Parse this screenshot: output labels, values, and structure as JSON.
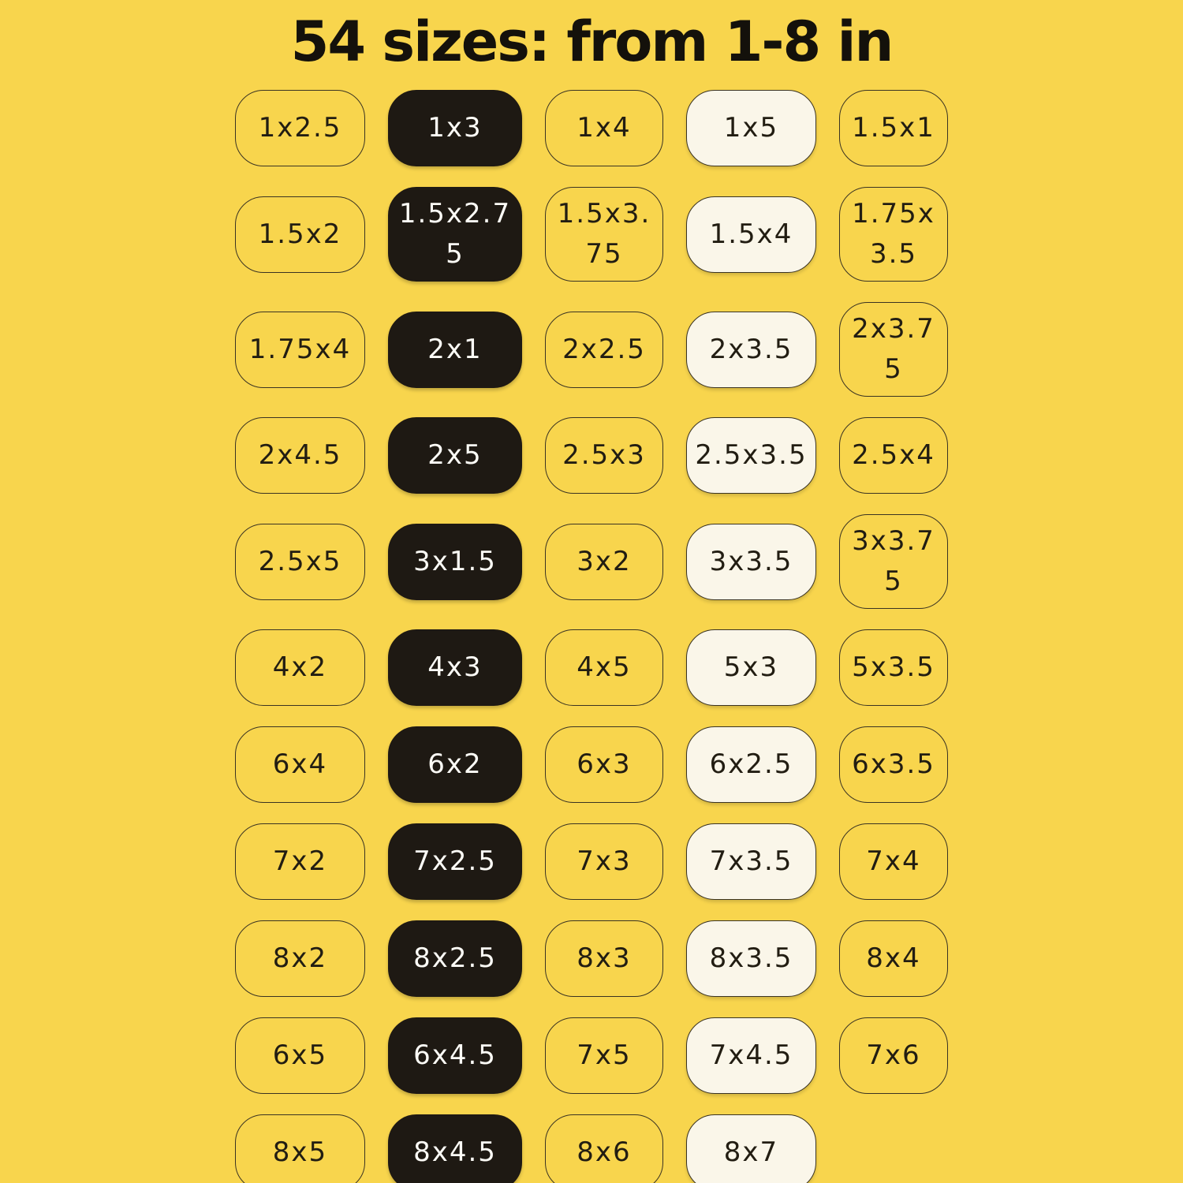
{
  "title": "54 sizes: from 1-8 in",
  "colors": {
    "background": "#F8D54D",
    "pill_black": "#1E1913",
    "pill_cream": "#FAF6E9",
    "border": "#3A3322",
    "text_dark": "#221D12",
    "text_light": "#FCFBF6",
    "title_color": "#14110B"
  },
  "grid": {
    "columns": 5,
    "rows": [
      {
        "cells": [
          {
            "label": "1x2.5",
            "variant": "outline"
          },
          {
            "label": "1x3",
            "variant": "black"
          },
          {
            "label": "1x4",
            "variant": "outline"
          },
          {
            "label": "1x5",
            "variant": "cream"
          },
          {
            "label": "1.5x1",
            "variant": "outline"
          }
        ]
      },
      {
        "cells": [
          {
            "label": "1.5x2",
            "variant": "outline"
          },
          {
            "label": "1.5x2.75",
            "variant": "black"
          },
          {
            "label": "1.5x3.75",
            "variant": "outline"
          },
          {
            "label": "1.5x4",
            "variant": "cream"
          },
          {
            "label": "1.75x3.5",
            "variant": "outline"
          }
        ]
      },
      {
        "cells": [
          {
            "label": "1.75x4",
            "variant": "outline"
          },
          {
            "label": "2x1",
            "variant": "black"
          },
          {
            "label": "2x2.5",
            "variant": "outline"
          },
          {
            "label": "2x3.5",
            "variant": "cream"
          },
          {
            "label": "2x3.75",
            "variant": "outline"
          }
        ]
      },
      {
        "cells": [
          {
            "label": "2x4.5",
            "variant": "outline"
          },
          {
            "label": "2x5",
            "variant": "black"
          },
          {
            "label": "2.5x3",
            "variant": "outline"
          },
          {
            "label": "2.5x3.5",
            "variant": "cream"
          },
          {
            "label": "2.5x4",
            "variant": "outline"
          }
        ]
      },
      {
        "cells": [
          {
            "label": "2.5x5",
            "variant": "outline"
          },
          {
            "label": "3x1.5",
            "variant": "black"
          },
          {
            "label": "3x2",
            "variant": "outline"
          },
          {
            "label": "3x3.5",
            "variant": "cream"
          },
          {
            "label": "3x3.75",
            "variant": "outline"
          }
        ]
      },
      {
        "cells": [
          {
            "label": "4x2",
            "variant": "outline"
          },
          {
            "label": "4x3",
            "variant": "black"
          },
          {
            "label": "4x5",
            "variant": "outline"
          },
          {
            "label": "5x3",
            "variant": "cream"
          },
          {
            "label": "5x3.5",
            "variant": "outline"
          }
        ]
      },
      {
        "cells": [
          {
            "label": "6x4",
            "variant": "outline"
          },
          {
            "label": "6x2",
            "variant": "black"
          },
          {
            "label": "6x3",
            "variant": "outline"
          },
          {
            "label": "6x2.5",
            "variant": "cream"
          },
          {
            "label": "6x3.5",
            "variant": "outline"
          }
        ]
      },
      {
        "cells": [
          {
            "label": "7x2",
            "variant": "outline"
          },
          {
            "label": "7x2.5",
            "variant": "black"
          },
          {
            "label": "7x3",
            "variant": "outline"
          },
          {
            "label": "7x3.5",
            "variant": "cream"
          },
          {
            "label": "7x4",
            "variant": "outline"
          }
        ]
      },
      {
        "cells": [
          {
            "label": "8x2",
            "variant": "outline"
          },
          {
            "label": "8x2.5",
            "variant": "black"
          },
          {
            "label": "8x3",
            "variant": "outline"
          },
          {
            "label": "8x3.5",
            "variant": "cream"
          },
          {
            "label": "8x4",
            "variant": "outline"
          }
        ]
      },
      {
        "cells": [
          {
            "label": "6x5",
            "variant": "outline"
          },
          {
            "label": "6x4.5",
            "variant": "black"
          },
          {
            "label": "7x5",
            "variant": "outline"
          },
          {
            "label": "7x4.5",
            "variant": "cream"
          },
          {
            "label": "7x6",
            "variant": "outline"
          }
        ]
      },
      {
        "cells": [
          {
            "label": "8x5",
            "variant": "outline"
          },
          {
            "label": "8x4.5",
            "variant": "black"
          },
          {
            "label": "8x6",
            "variant": "outline"
          },
          {
            "label": "8x7",
            "variant": "cream"
          }
        ]
      }
    ]
  }
}
